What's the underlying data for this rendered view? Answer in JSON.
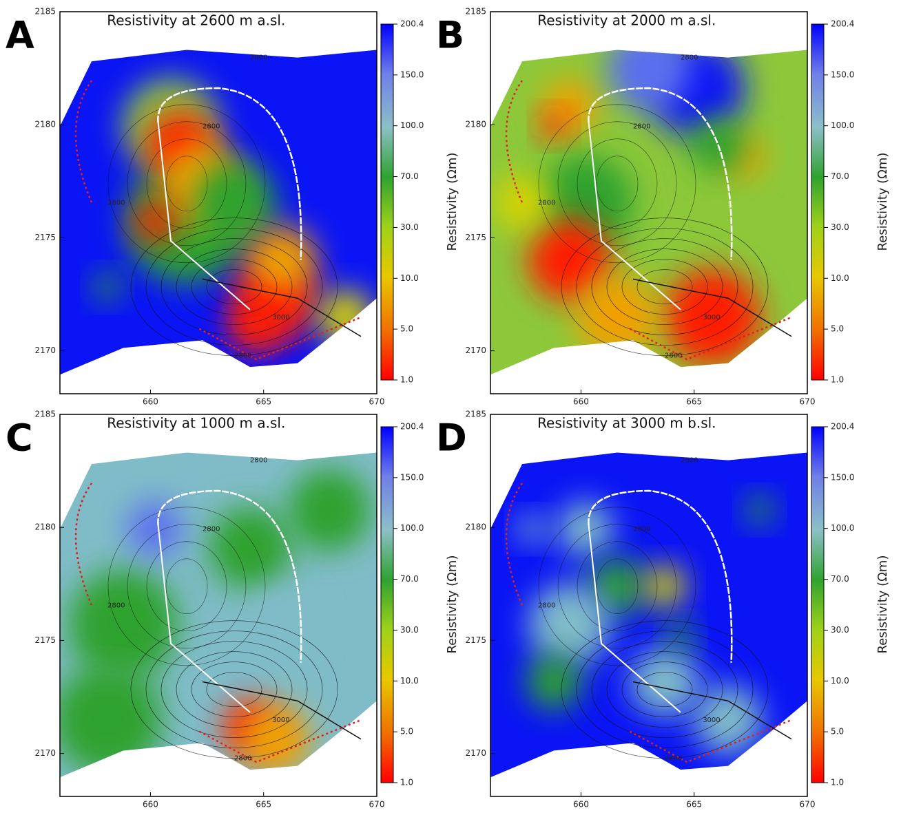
{
  "panels": [
    {
      "letter": "A",
      "title": "Resistivity at 2600 m a.sl."
    },
    {
      "letter": "B",
      "title": "Resistivity at 2000 m a.sl."
    },
    {
      "letter": "C",
      "title": "Resistivity at 1000 m a.sl."
    },
    {
      "letter": "D",
      "title": "Resistivity at 3000 m b.sl."
    }
  ],
  "axes": {
    "xlim": [
      656,
      670
    ],
    "ylim": [
      2168.1,
      2185
    ],
    "xticks": [
      660,
      665,
      670
    ],
    "yticks": [
      2170,
      2175,
      2180,
      2185
    ]
  },
  "colorbar": {
    "label": "Resistivity (Ωm)",
    "ticks": [
      {
        "value": 1,
        "label": "1.0"
      },
      {
        "value": 5,
        "label": "5.0"
      },
      {
        "value": 10,
        "label": "10.0"
      },
      {
        "value": 30,
        "label": "30.0"
      },
      {
        "value": 70,
        "label": "70.0"
      },
      {
        "value": 100,
        "label": "100.0"
      },
      {
        "value": 150,
        "label": "150.0"
      },
      {
        "value": 200.4,
        "label": "200.4"
      }
    ]
  },
  "contour_labels": [
    "2800",
    "3000"
  ]
}
